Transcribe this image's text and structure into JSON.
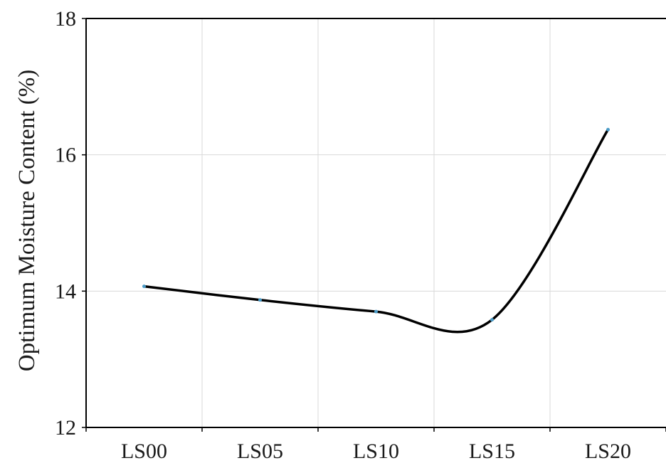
{
  "chart_data": {
    "type": "line",
    "title": "",
    "xlabel": "",
    "ylabel": "Optimum Moisture Content (%)",
    "categories": [
      "LS00",
      "LS05",
      "LS10",
      "LS15",
      "LS20"
    ],
    "series": [
      {
        "values": [
          14.07,
          13.87,
          13.7,
          13.58,
          16.37
        ]
      }
    ],
    "ylim": [
      12,
      18
    ],
    "yticks": [
      12,
      14,
      16,
      18
    ],
    "grid": true,
    "smooth": true,
    "line_color": "#000000",
    "marker_color": "#4a9bc7",
    "grid_color": "#d9d9d9"
  }
}
